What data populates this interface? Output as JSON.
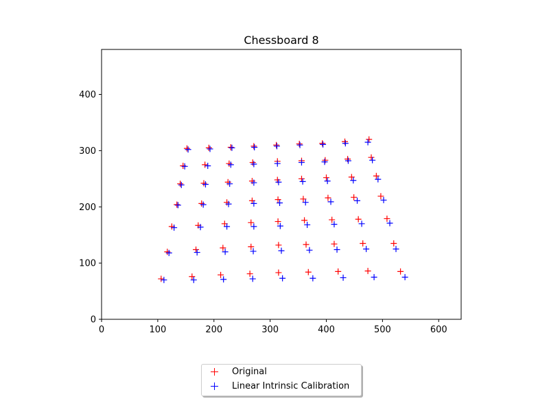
{
  "chart_data": {
    "type": "scatter",
    "title": "Chessboard 8",
    "xlabel": "",
    "ylabel": "",
    "xlim": [
      0,
      640
    ],
    "ylim": [
      0,
      480
    ],
    "xticks": [
      0,
      100,
      200,
      300,
      400,
      500,
      600
    ],
    "yticks": [
      0,
      100,
      200,
      300,
      400
    ],
    "grid": false,
    "legend_position": "below-center",
    "series": [
      {
        "name": "Original",
        "color": "#ff0000",
        "marker": "plus",
        "points": [
          [
            106,
            72
          ],
          [
            161,
            76
          ],
          [
            212,
            79
          ],
          [
            264,
            81
          ],
          [
            315,
            83
          ],
          [
            368,
            84
          ],
          [
            421,
            85
          ],
          [
            474,
            86
          ],
          [
            532,
            85
          ],
          [
            117,
            120
          ],
          [
            168,
            124
          ],
          [
            216,
            127
          ],
          [
            266,
            129
          ],
          [
            315,
            132
          ],
          [
            364,
            133
          ],
          [
            414,
            134
          ],
          [
            465,
            135
          ],
          [
            520,
            135
          ],
          [
            125,
            165
          ],
          [
            172,
            167
          ],
          [
            219,
            170
          ],
          [
            266,
            172
          ],
          [
            314,
            174
          ],
          [
            361,
            176
          ],
          [
            410,
            177
          ],
          [
            457,
            178
          ],
          [
            508,
            179
          ],
          [
            134,
            204
          ],
          [
            178,
            206
          ],
          [
            223,
            208
          ],
          [
            268,
            211
          ],
          [
            314,
            213
          ],
          [
            359,
            214
          ],
          [
            403,
            216
          ],
          [
            449,
            217
          ],
          [
            497,
            219
          ],
          [
            140,
            241
          ],
          [
            182,
            242
          ],
          [
            225,
            244
          ],
          [
            268,
            246
          ],
          [
            313,
            248
          ],
          [
            356,
            250
          ],
          [
            400,
            252
          ],
          [
            445,
            253
          ],
          [
            489,
            255
          ],
          [
            145,
            273
          ],
          [
            184,
            275
          ],
          [
            227,
            277
          ],
          [
            269,
            279
          ],
          [
            313,
            281
          ],
          [
            356,
            282
          ],
          [
            398,
            283
          ],
          [
            438,
            285
          ],
          [
            480,
            288
          ],
          [
            152,
            304
          ],
          [
            191,
            305
          ],
          [
            230,
            306
          ],
          [
            271,
            308
          ],
          [
            311,
            310
          ],
          [
            352,
            312
          ],
          [
            393,
            313
          ],
          [
            433,
            316
          ],
          [
            476,
            320
          ]
        ]
      },
      {
        "name": "Linear Intrinsic Calibration",
        "color": "#0000ff",
        "marker": "plus",
        "points": [
          [
            111,
            70
          ],
          [
            164,
            70
          ],
          [
            217,
            71
          ],
          [
            269,
            72
          ],
          [
            322,
            73
          ],
          [
            376,
            73
          ],
          [
            430,
            74
          ],
          [
            485,
            75
          ],
          [
            540,
            75
          ],
          [
            120,
            118
          ],
          [
            170,
            119
          ],
          [
            220,
            120
          ],
          [
            270,
            121
          ],
          [
            320,
            122
          ],
          [
            370,
            123
          ],
          [
            419,
            124
          ],
          [
            471,
            125
          ],
          [
            524,
            125
          ],
          [
            129,
            163
          ],
          [
            176,
            164
          ],
          [
            223,
            165
          ],
          [
            271,
            165
          ],
          [
            318,
            166
          ],
          [
            366,
            168
          ],
          [
            414,
            169
          ],
          [
            463,
            170
          ],
          [
            513,
            171
          ],
          [
            136,
            203
          ],
          [
            181,
            204
          ],
          [
            226,
            205
          ],
          [
            271,
            206
          ],
          [
            317,
            207
          ],
          [
            363,
            208
          ],
          [
            408,
            209
          ],
          [
            455,
            211
          ],
          [
            502,
            212
          ],
          [
            142,
            239
          ],
          [
            185,
            240
          ],
          [
            228,
            241
          ],
          [
            271,
            243
          ],
          [
            315,
            244
          ],
          [
            358,
            245
          ],
          [
            402,
            246
          ],
          [
            448,
            247
          ],
          [
            492,
            249
          ],
          [
            148,
            272
          ],
          [
            189,
            273
          ],
          [
            230,
            275
          ],
          [
            271,
            276
          ],
          [
            313,
            277
          ],
          [
            356,
            279
          ],
          [
            397,
            280
          ],
          [
            439,
            282
          ],
          [
            482,
            283
          ],
          [
            154,
            302
          ],
          [
            193,
            303
          ],
          [
            232,
            305
          ],
          [
            272,
            306
          ],
          [
            312,
            308
          ],
          [
            353,
            310
          ],
          [
            394,
            311
          ],
          [
            434,
            313
          ],
          [
            474,
            315
          ]
        ]
      }
    ]
  },
  "legend": {
    "items": [
      {
        "label": "Original",
        "color": "#ff0000"
      },
      {
        "label": "Linear Intrinsic Calibration",
        "color": "#0000ff"
      }
    ]
  }
}
